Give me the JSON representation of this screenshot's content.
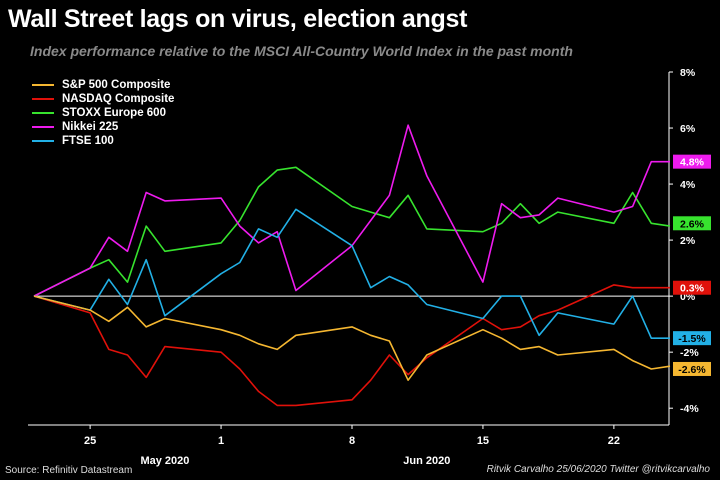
{
  "title": "Wall Street lags on virus, election angst",
  "subtitle": "Index performance relative to the MSCI All-Country World Index in the past month",
  "source": "Source: Refinitiv Datastream",
  "credit": "Ritvik Carvalho 25/06/2020 Twitter @ritvikcarvalho",
  "chart_data": {
    "type": "line",
    "x": [
      "2020-05-22",
      "2020-05-25",
      "2020-05-26",
      "2020-05-27",
      "2020-05-28",
      "2020-05-29",
      "2020-06-01",
      "2020-06-02",
      "2020-06-03",
      "2020-06-04",
      "2020-06-05",
      "2020-06-08",
      "2020-06-09",
      "2020-06-10",
      "2020-06-11",
      "2020-06-12",
      "2020-06-15",
      "2020-06-16",
      "2020-06-17",
      "2020-06-18",
      "2020-06-19",
      "2020-06-22",
      "2020-06-23",
      "2020-06-24",
      "2020-06-25"
    ],
    "x_ticks": [
      {
        "date": "2020-05-25",
        "label": "25"
      },
      {
        "date": "2020-06-01",
        "label": "1"
      },
      {
        "date": "2020-06-08",
        "label": "8"
      },
      {
        "date": "2020-06-15",
        "label": "15"
      },
      {
        "date": "2020-06-22",
        "label": "22"
      }
    ],
    "month_labels": [
      {
        "date": "2020-05-29",
        "label": "May 2020"
      },
      {
        "date": "2020-06-12",
        "label": "Jun 2020"
      }
    ],
    "y_ticks": [
      "8%",
      "6%",
      "4%",
      "2%",
      "0%",
      "-2%",
      "-4%"
    ],
    "ylim": [
      -4.6,
      8
    ],
    "series": [
      {
        "name": "S&P 500 Composite",
        "color": "#f5b731",
        "end_label": "-2.6%",
        "values": [
          0,
          -0.5,
          -0.9,
          -0.4,
          -1.1,
          -0.8,
          -1.2,
          -1.4,
          -1.7,
          -1.9,
          -1.4,
          -1.1,
          -1.4,
          -1.6,
          -3.0,
          -2.1,
          -1.2,
          -1.5,
          -1.9,
          -1.8,
          -2.1,
          -1.9,
          -2.3,
          -2.6,
          -2.5
        ]
      },
      {
        "name": "NASDAQ Composite",
        "color": "#e0110a",
        "end_label": "0.3%",
        "values": [
          0,
          -0.6,
          -1.9,
          -2.1,
          -2.9,
          -1.8,
          -2.0,
          -2.6,
          -3.4,
          -3.9,
          -3.9,
          -3.7,
          -3.0,
          -2.1,
          -2.8,
          -2.2,
          -0.8,
          -1.2,
          -1.1,
          -0.7,
          -0.5,
          0.4,
          0.3,
          0.3,
          0.3
        ]
      },
      {
        "name": "STOXX Europe 600",
        "color": "#37e32e",
        "end_label": "2.6%",
        "values": [
          0,
          1.0,
          1.3,
          0.5,
          2.5,
          1.6,
          1.9,
          2.7,
          3.9,
          4.5,
          4.6,
          3.2,
          3.0,
          2.8,
          3.6,
          2.4,
          2.3,
          2.6,
          3.3,
          2.6,
          3.0,
          2.6,
          3.7,
          2.6,
          2.5
        ]
      },
      {
        "name": "Nikkei 225",
        "color": "#ee1bee",
        "end_label": "4.8%",
        "values": [
          0,
          1.0,
          2.1,
          1.6,
          3.7,
          3.4,
          3.5,
          2.5,
          1.9,
          2.3,
          0.2,
          1.8,
          2.7,
          3.6,
          6.1,
          4.3,
          0.5,
          3.3,
          2.8,
          2.9,
          3.5,
          3.0,
          3.2,
          4.8,
          4.8
        ]
      },
      {
        "name": "FTSE 100",
        "color": "#22b0e6",
        "end_label": "-1.5%",
        "values": [
          0,
          -0.5,
          0.6,
          -0.3,
          1.3,
          -0.7,
          0.8,
          1.2,
          2.4,
          2.1,
          3.1,
          1.8,
          0.3,
          0.7,
          0.4,
          -0.3,
          -0.8,
          0.0,
          0.0,
          -1.4,
          -0.6,
          -1.0,
          0.0,
          -1.5,
          -1.5
        ]
      }
    ]
  }
}
